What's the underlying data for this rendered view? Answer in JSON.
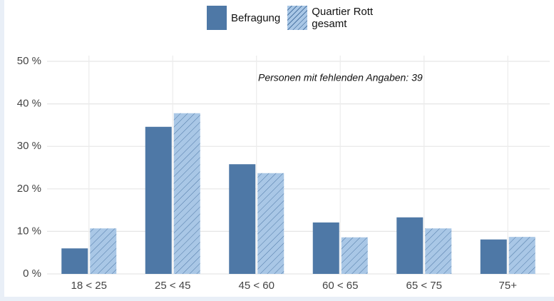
{
  "chart_data": {
    "type": "bar",
    "categories": [
      "18 < 25",
      "25 < 45",
      "45 < 60",
      "60 < 65",
      "65 < 75",
      "75+"
    ],
    "series": [
      {
        "name": "Befragung",
        "color": "#4e78a6",
        "values": [
          6.0,
          34.6,
          25.8,
          12.1,
          13.3,
          8.1
        ]
      },
      {
        "name": "Quartier Rott gesamt",
        "color": "#a9c7e6",
        "hatch": true,
        "values": [
          10.7,
          37.8,
          23.7,
          8.6,
          10.7,
          8.7
        ]
      }
    ],
    "ylim": [
      0,
      50
    ],
    "yticks": [
      {
        "value": 0,
        "label": "0 %"
      },
      {
        "value": 10,
        "label": "10 %"
      },
      {
        "value": 20,
        "label": "20 %"
      },
      {
        "value": 30,
        "label": "30 %"
      },
      {
        "value": 40,
        "label": "40 %"
      },
      {
        "value": 50,
        "label": "50 %"
      }
    ],
    "grid": true,
    "annotation": "Personen mit fehlenden Angaben: 39"
  }
}
